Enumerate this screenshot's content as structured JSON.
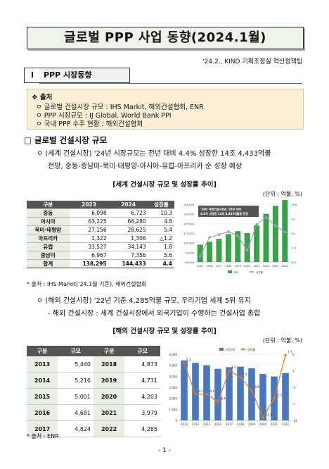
{
  "doc": {
    "title": "글로벌 PPP 사업 동향(2024.1월)",
    "subtitle": "'24.2., KIND 기획조정실 혁신정책팀",
    "section_num": "I",
    "section_title": "PPP 시장동향",
    "source_header": "❖ 출처",
    "source_lines": [
      "ㅇ 글로벌 건설시장 규모 : IHS Markit, 해외건설협회, ENR",
      "ㅇ PPP 시장규모 : IJ Global, World Bank PPI",
      "ㅇ 국내 PPP 수주 현황 : 해외건설협회"
    ],
    "heading": "□ 글로벌 건설시장 규모",
    "bullet1_line1": "ㅇ (세계 건설시장) '24년 시장규모는 전년 대비 4.4% 성장한 14조 4,433억불",
    "bullet1_line2": "전망, 중동-중남미-북미·태평양-아시아-유럽-아프리카 순 성장 예상",
    "chart1_title": "[세계 건설시장 규모 및 성장률 추이]",
    "chart1_unit": "(단위 : 억불, %)",
    "chart1_foot": "* 출처 : IHS Markit('24.1월 기준), 해외건설협회",
    "bullet2_line1": "ㅇ (해외 건설시장) '22년 기준 4,285억불 규모, 우리기업 세계 5위 유지",
    "bullet2_line2": "- 해외 건설시장 : 세계 건설시장에서 외국기업이 수행하는 건설사업 총합",
    "chart2_title": "[해외 건설시장 규모 및 성장률 추이]",
    "chart2_unit": "(단위 : 억불, %)",
    "chart2_foot": "* 출처 : ENR",
    "page_number": "- 1 -"
  },
  "table1": {
    "headers": [
      "구분",
      "2023",
      "2024",
      "성장률"
    ],
    "rows": [
      [
        "중동",
        "6,098",
        "6,723",
        "10.3"
      ],
      [
        "아시아",
        "63,225",
        "66,280",
        "4.8"
      ],
      [
        "북미·태평양",
        "27,156",
        "28,625",
        "5.4"
      ],
      [
        "아프리카",
        "1,322",
        "1,306",
        "△1.2"
      ],
      [
        "유럽",
        "33,527",
        "34,143",
        "1.8"
      ],
      [
        "중남미",
        "6,967",
        "7,356",
        "5.6"
      ]
    ],
    "total": [
      "합계",
      "138,295",
      "144,433",
      "4.4"
    ]
  },
  "table2": {
    "headers": [
      "구분",
      "규모",
      "구분",
      "규모"
    ],
    "rows": [
      [
        "2013",
        "5,440",
        "2018",
        "4,873"
      ],
      [
        "2014",
        "5,216",
        "2019",
        "4,731"
      ],
      [
        "2015",
        "5,001",
        "2020",
        "4,203"
      ],
      [
        "2016",
        "4,681",
        "2021",
        "3,979"
      ],
      [
        "2017",
        "4,824",
        "2022",
        "4,285"
      ]
    ]
  },
  "chart_data": [
    {
      "type": "bar",
      "annotation": "'24년 세계건설시장은 '23년 대비 4.4% 성장한 14조 4,433억불로 전망",
      "x": [
        "2015",
        "2016",
        "2017",
        "2018",
        "2019",
        "2020",
        "2021",
        "2022",
        "2023",
        "2024"
      ],
      "series": [
        {
          "name": "규모",
          "values": [
            98000,
            101000,
            104000,
            109000,
            112000,
            110000,
            118000,
            130000,
            138295,
            144433
          ]
        },
        {
          "name": "성장률",
          "values": [
            -4.0,
            2.5,
            3.5,
            4.5,
            3.0,
            -2.0,
            7.0,
            9.5,
            6.5,
            4.4
          ]
        }
      ],
      "y_left": {
        "min": 80000,
        "max": 140000,
        "ticks": [
          "80,000",
          "90,000",
          "100,000",
          "110,000",
          "120,000",
          "130,000",
          "140,000"
        ]
      },
      "y_right": {
        "min": -6,
        "max": 14,
        "ticks": [
          "-6.0",
          "-1.0",
          "4.0",
          "9.0",
          "14.0"
        ]
      },
      "legend": [
        "규모",
        "성장률"
      ],
      "colors": {
        "bar": "#3aa04a",
        "line": "#9aa4b0",
        "annot_bg": "#555555"
      }
    },
    {
      "type": "bar",
      "x": [
        "2013",
        "2014",
        "2015",
        "2016",
        "2017",
        "2018",
        "2019",
        "2020",
        "2021",
        "2022"
      ],
      "series": [
        {
          "name": "시장규모",
          "values": [
            5440,
            5216,
            5001,
            4681,
            4824,
            4873,
            4731,
            4203,
            3979,
            4285
          ]
        },
        {
          "name": "성장률",
          "values": [
            5.3,
            -4.1,
            -4.1,
            -6.4,
            3.1,
            1.0,
            -2.9,
            -11.2,
            -5.3,
            7.7
          ]
        }
      ],
      "point_labels": [
        "5.3",
        "-4.1",
        "-4.1",
        "-6.4",
        "3.1",
        "1.0",
        "-2.9",
        "-11.2",
        "-5.3",
        "7.7"
      ],
      "y_left": {
        "min": 0,
        "max": 6000,
        "ticks": [
          "0",
          "1,000",
          "2,000",
          "3,000",
          "4,000",
          "5,000",
          "6,000"
        ]
      },
      "y_right": {
        "min": -12,
        "max": 8,
        "ticks": [
          "-12",
          "-7",
          "-2",
          "3",
          "8"
        ]
      },
      "legend": [
        "시장규모",
        "성장률"
      ],
      "colors": {
        "bar": "#4a78bf",
        "line": "#e07a1a"
      }
    }
  ]
}
